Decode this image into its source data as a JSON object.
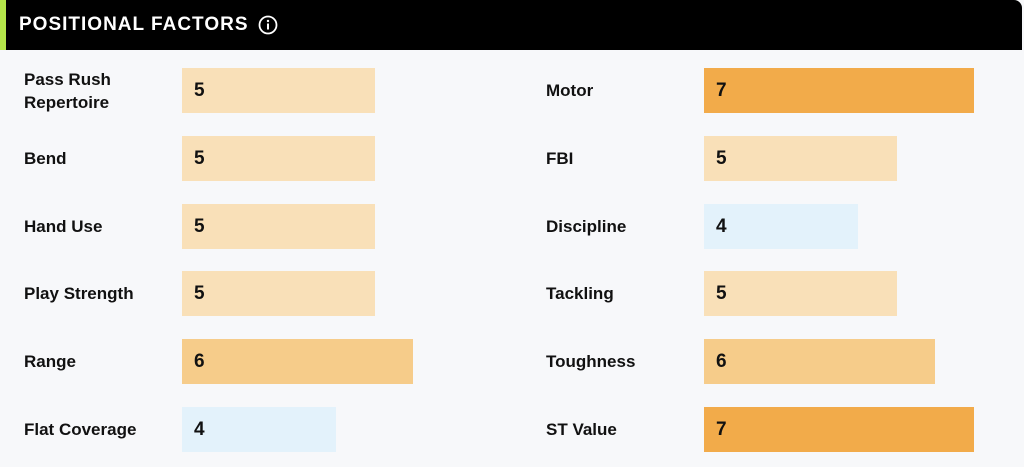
{
  "header": {
    "title": "POSITIONAL FACTORS",
    "info_icon": "info-icon"
  },
  "scale_max": 10,
  "colors": {
    "header_bg": "#000000",
    "accent": "#b4e64a",
    "score_4": "#e3f2fb",
    "score_5": "#f9e0b8",
    "score_6": "#f6cc8a",
    "score_7": "#f2ab4a"
  },
  "left_factors": [
    {
      "label": "Pass Rush Repertoire",
      "value": 5
    },
    {
      "label": "Bend",
      "value": 5
    },
    {
      "label": "Hand Use",
      "value": 5
    },
    {
      "label": "Play Strength",
      "value": 5
    },
    {
      "label": "Range",
      "value": 6
    },
    {
      "label": "Flat Coverage",
      "value": 4
    }
  ],
  "right_factors": [
    {
      "label": "Motor",
      "value": 7
    },
    {
      "label": "FBI",
      "value": 5
    },
    {
      "label": "Discipline",
      "value": 4
    },
    {
      "label": "Tackling",
      "value": 5
    },
    {
      "label": "Toughness",
      "value": 6
    },
    {
      "label": "ST Value",
      "value": 7
    }
  ]
}
